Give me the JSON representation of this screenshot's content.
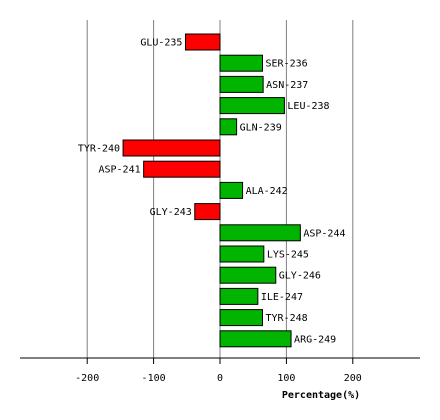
{
  "chart_data": {
    "type": "bar",
    "orientation": "horizontal",
    "categories": [
      "GLU-235",
      "SER-236",
      "ASN-237",
      "LEU-238",
      "GLN-239",
      "TYR-240",
      "ASP-241",
      "ALA-242",
      "GLY-243",
      "ASP-244",
      "LYS-245",
      "GLY-246",
      "ILE-247",
      "TYR-248",
      "ARG-249"
    ],
    "values": [
      -52,
      64,
      65,
      97,
      25,
      -146,
      -115,
      34,
      -38,
      121,
      66,
      84,
      57,
      64,
      107
    ],
    "xlabel": "Percentage(%)",
    "xlim": [
      -300,
      300
    ],
    "xticks": [
      -200,
      -100,
      0,
      100,
      200
    ],
    "grid": true,
    "colors": {
      "positive": "#00b400",
      "negative": "#ff0000",
      "outline": "#000000",
      "grid": "#808080"
    }
  }
}
